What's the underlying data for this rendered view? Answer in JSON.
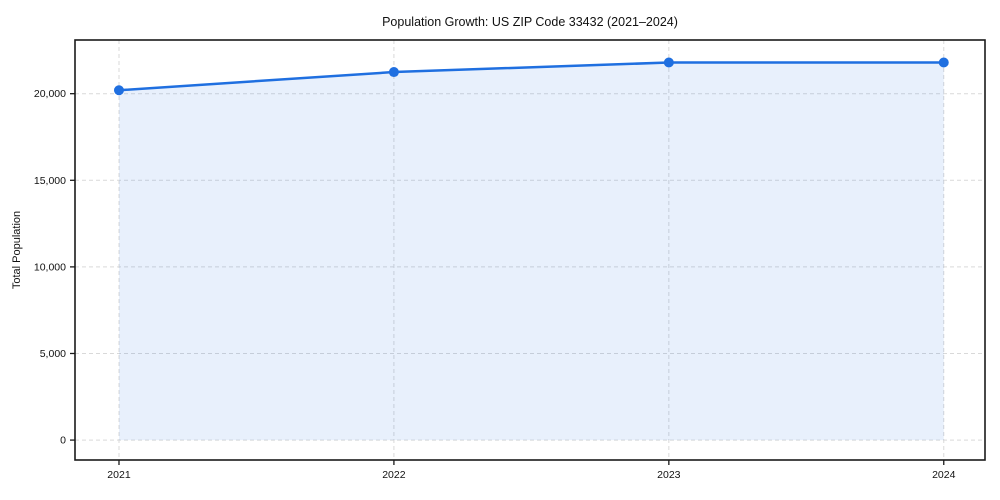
{
  "page": {
    "background": "#ffffff"
  },
  "chart_data": {
    "type": "area",
    "title": "Population Growth: US ZIP Code 33432 (2021–2024)",
    "xlabel": "",
    "ylabel": "Total Population",
    "x": [
      2021,
      2022,
      2023,
      2024
    ],
    "x_tick_labels": [
      "2021",
      "2022",
      "2023",
      "2024"
    ],
    "y_ticks": [
      0,
      5000,
      10000,
      15000,
      20000
    ],
    "y_tick_labels": [
      "0",
      "5,000",
      "10,000",
      "15,000",
      "20,000"
    ],
    "series": [
      {
        "name": "Total Population",
        "values": [
          20200,
          21250,
          21800,
          21800
        ]
      }
    ],
    "xlim": [
      2020.84,
      2024.15
    ],
    "ylim": [
      -1150,
      23100
    ],
    "grid": "dashed both axes",
    "legend": "none",
    "fill_baseline": 0,
    "colors": {
      "line": "#1f6fe0",
      "marker": "#1f6fe0",
      "area_fill": "rgba(31,111,224,0.10)",
      "grid": "#d9d9d9",
      "spine": "#1a1a1a",
      "text": "#111111"
    }
  }
}
